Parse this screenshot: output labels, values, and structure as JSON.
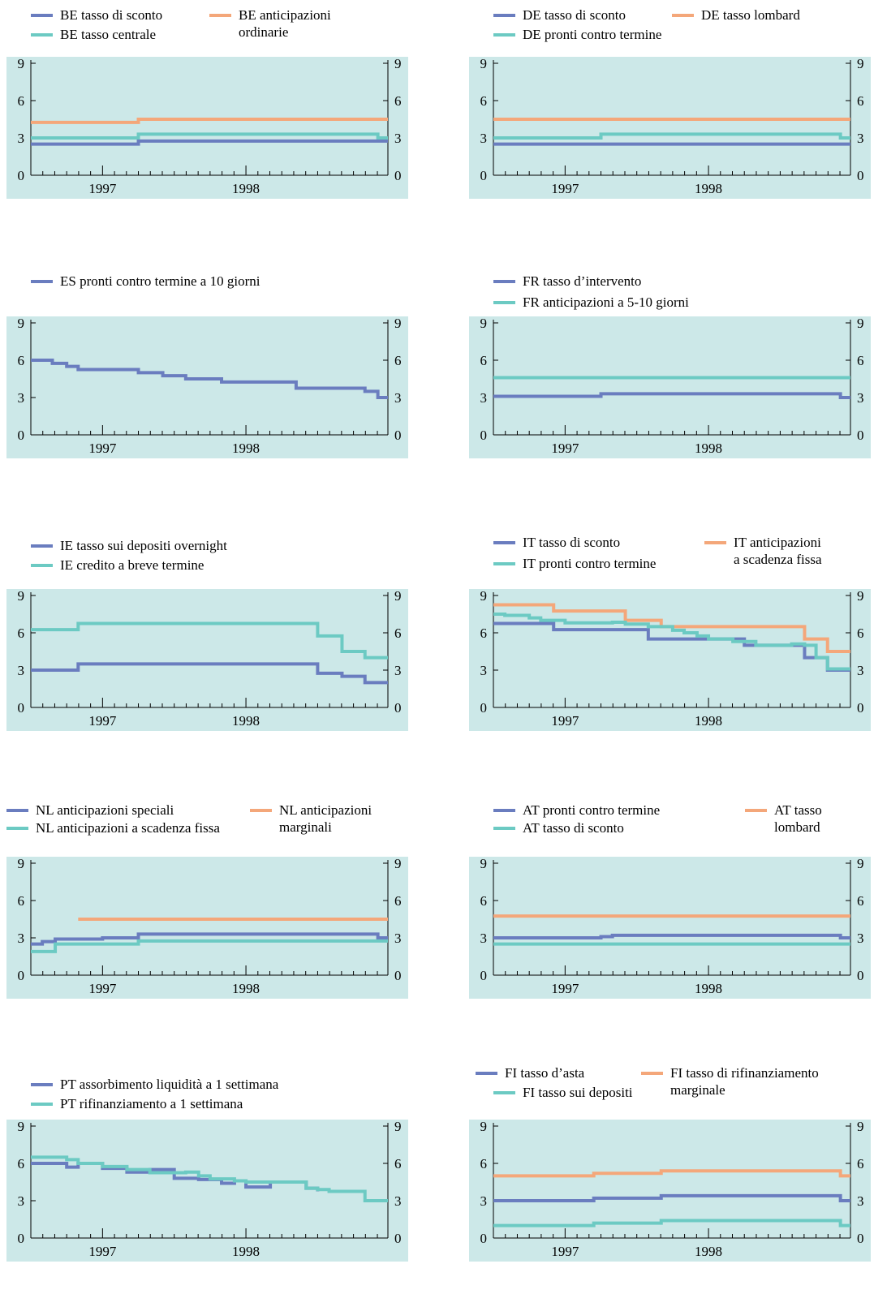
{
  "colors": {
    "blue": "#6a7dbf",
    "orange": "#f4a77a",
    "teal": "#6ccac3",
    "background": "#cce8e8"
  },
  "chart_data": [
    {
      "type": "line",
      "ylim": [
        0,
        9
      ],
      "yticks": [
        0,
        3,
        6,
        9
      ],
      "xlim": [
        1996.5,
        1998.99
      ],
      "xtick_labels": [
        "1997",
        "1998"
      ],
      "series": [
        {
          "name_parts": [
            "BE",
            "tasso di sconto"
          ],
          "color": "blue",
          "x": [
            1996.5,
            1997.25,
            1998.99
          ],
          "values": [
            2.5,
            2.75,
            2.75
          ]
        },
        {
          "name_parts": [
            "BE",
            "anticipazioni\nordinarie"
          ],
          "color": "orange",
          "x": [
            1996.5,
            1997.25,
            1998.99
          ],
          "values": [
            4.25,
            4.5,
            4.5
          ]
        },
        {
          "name_parts": [
            "BE",
            "tasso centrale"
          ],
          "color": "teal",
          "x": [
            1996.5,
            1997.25,
            1998.92,
            1998.99
          ],
          "values": [
            3.0,
            3.3,
            3.0,
            3.0
          ]
        }
      ]
    },
    {
      "type": "line",
      "ylim": [
        0,
        9
      ],
      "yticks": [
        0,
        3,
        6,
        9
      ],
      "xlim": [
        1996.5,
        1998.99
      ],
      "xtick_labels": [
        "1997",
        "1998"
      ],
      "series": [
        {
          "name_parts": [
            "DE",
            "tasso di sconto"
          ],
          "color": "blue",
          "x": [
            1996.5,
            1998.99
          ],
          "values": [
            2.5,
            2.5
          ]
        },
        {
          "name_parts": [
            "DE",
            "tasso lombard"
          ],
          "color": "orange",
          "x": [
            1996.5,
            1998.99
          ],
          "values": [
            4.5,
            4.5
          ]
        },
        {
          "name_parts": [
            "DE",
            "pronti contro termine"
          ],
          "color": "teal",
          "x": [
            1996.5,
            1997.25,
            1998.92,
            1998.99
          ],
          "values": [
            3.0,
            3.3,
            3.0,
            3.0
          ]
        }
      ]
    },
    {
      "type": "line",
      "ylim": [
        0,
        9
      ],
      "yticks": [
        0,
        3,
        6,
        9
      ],
      "xlim": [
        1996.5,
        1998.99
      ],
      "xtick_labels": [
        "1997",
        "1998"
      ],
      "series": [
        {
          "name_parts": [
            "ES",
            "pronti contro termine a 10 giorni"
          ],
          "color": "blue",
          "x": [
            1996.5,
            1996.65,
            1996.75,
            1996.83,
            1997.25,
            1997.42,
            1997.58,
            1997.83,
            1998.25,
            1998.35,
            1998.83,
            1998.92,
            1998.99
          ],
          "values": [
            6.0,
            5.75,
            5.5,
            5.25,
            5.0,
            4.75,
            4.5,
            4.25,
            4.25,
            3.75,
            3.5,
            3.0,
            3.0
          ]
        }
      ]
    },
    {
      "type": "line",
      "ylim": [
        0,
        9
      ],
      "yticks": [
        0,
        3,
        6,
        9
      ],
      "xlim": [
        1996.5,
        1998.99
      ],
      "xtick_labels": [
        "1997",
        "1998"
      ],
      "series": [
        {
          "name_parts": [
            "FR",
            "tasso d’intervento"
          ],
          "color": "blue",
          "x": [
            1996.5,
            1997.25,
            1998.92,
            1998.99
          ],
          "values": [
            3.1,
            3.3,
            3.0,
            3.0
          ]
        },
        {
          "name_parts": [
            "FR",
            "anticipazioni a 5-10 giorni"
          ],
          "color": "teal",
          "x": [
            1996.5,
            1998.99
          ],
          "values": [
            4.6,
            4.6
          ]
        }
      ]
    },
    {
      "type": "line",
      "ylim": [
        0,
        9
      ],
      "yticks": [
        0,
        3,
        6,
        9
      ],
      "xlim": [
        1996.5,
        1998.99
      ],
      "xtick_labels": [
        "1997",
        "1998"
      ],
      "series": [
        {
          "name_parts": [
            "IE",
            "tasso sui depositi overnight"
          ],
          "color": "blue",
          "x": [
            1996.5,
            1996.83,
            1998.25,
            1998.5,
            1998.67,
            1998.83,
            1998.99
          ],
          "values": [
            3.0,
            3.5,
            3.5,
            2.75,
            2.5,
            2.0,
            2.0
          ]
        },
        {
          "name_parts": [
            "IE",
            "credito a breve termine"
          ],
          "color": "teal",
          "x": [
            1996.5,
            1996.83,
            1998.25,
            1998.5,
            1998.67,
            1998.83,
            1998.99
          ],
          "values": [
            6.25,
            6.75,
            6.75,
            5.75,
            4.5,
            4.0,
            4.0
          ]
        }
      ]
    },
    {
      "type": "line",
      "ylim": [
        0,
        9
      ],
      "yticks": [
        0,
        3,
        6,
        9
      ],
      "xlim": [
        1996.5,
        1998.99
      ],
      "xtick_labels": [
        "1997",
        "1998"
      ],
      "series": [
        {
          "name_parts": [
            "IT",
            "tasso di sconto"
          ],
          "color": "blue",
          "x": [
            1996.5,
            1996.92,
            1997.33,
            1997.58,
            1998.25,
            1998.42,
            1998.67,
            1998.83,
            1998.99
          ],
          "values": [
            6.75,
            6.25,
            6.25,
            5.5,
            5.0,
            5.0,
            4.0,
            3.0,
            3.0
          ]
        },
        {
          "name_parts": [
            "IT",
            "anticipazioni\na scadenza fissa"
          ],
          "color": "orange",
          "x": [
            1996.5,
            1996.92,
            1997.42,
            1997.67,
            1998.25,
            1998.67,
            1998.83,
            1998.99
          ],
          "values": [
            8.25,
            7.75,
            7.0,
            6.5,
            6.5,
            5.5,
            4.5,
            4.5
          ]
        },
        {
          "name_parts": [
            "IT",
            "pronti contro termine"
          ],
          "color": "teal",
          "x": [
            1996.5,
            1996.58,
            1996.75,
            1996.83,
            1997.0,
            1997.17,
            1997.33,
            1997.42,
            1997.58,
            1997.75,
            1997.83,
            1997.92,
            1998.0,
            1998.17,
            1998.33,
            1998.5,
            1998.58,
            1998.67,
            1998.75,
            1998.83,
            1998.99
          ],
          "values": [
            7.5,
            7.4,
            7.2,
            7.0,
            6.8,
            6.8,
            6.85,
            6.7,
            6.5,
            6.2,
            6.0,
            5.75,
            5.5,
            5.3,
            5.0,
            5.0,
            5.1,
            5.0,
            4.0,
            3.1,
            3.1
          ]
        }
      ]
    },
    {
      "type": "line",
      "ylim": [
        0,
        9
      ],
      "yticks": [
        0,
        3,
        6,
        9
      ],
      "xlim": [
        1996.5,
        1998.99
      ],
      "xtick_labels": [
        "1997",
        "1998"
      ],
      "series": [
        {
          "name_parts": [
            "NL",
            "anticipazioni speciali"
          ],
          "color": "blue",
          "x": [
            1996.5,
            1996.58,
            1996.67,
            1997.0,
            1997.25,
            1997.5,
            1998.92,
            1998.99
          ],
          "values": [
            2.5,
            2.7,
            2.9,
            3.0,
            3.3,
            3.3,
            3.0,
            3.0
          ]
        },
        {
          "name_parts": [
            "NL",
            "anticipazioni\nmarginali"
          ],
          "color": "orange",
          "x": [
            1996.83,
            1998.99
          ],
          "values": [
            4.5,
            4.5
          ]
        },
        {
          "name_parts": [
            "NL",
            "anticipazioni a scadenza fissa"
          ],
          "color": "teal",
          "x": [
            1996.5,
            1996.67,
            1997.25,
            1998.99
          ],
          "values": [
            1.9,
            2.5,
            2.75,
            2.75
          ]
        }
      ]
    },
    {
      "type": "line",
      "ylim": [
        0,
        9
      ],
      "yticks": [
        0,
        3,
        6,
        9
      ],
      "xlim": [
        1996.5,
        1998.99
      ],
      "xtick_labels": [
        "1997",
        "1998"
      ],
      "series": [
        {
          "name_parts": [
            "AT",
            "pronti contro termine"
          ],
          "color": "blue",
          "x": [
            1996.5,
            1997.25,
            1997.33,
            1998.92,
            1998.99
          ],
          "values": [
            3.0,
            3.1,
            3.2,
            3.0,
            3.0
          ]
        },
        {
          "name_parts": [
            "AT",
            "tasso\nlombard"
          ],
          "color": "orange",
          "x": [
            1996.5,
            1998.99
          ],
          "values": [
            4.75,
            4.75
          ]
        },
        {
          "name_parts": [
            "AT",
            "tasso di sconto"
          ],
          "color": "teal",
          "x": [
            1996.5,
            1998.99
          ],
          "values": [
            2.5,
            2.5
          ]
        }
      ]
    },
    {
      "type": "line",
      "ylim": [
        0,
        9
      ],
      "yticks": [
        0,
        3,
        6,
        9
      ],
      "xlim": [
        1996.5,
        1998.99
      ],
      "xtick_labels": [
        "1997",
        "1998"
      ],
      "series": [
        {
          "name_parts": [
            "PT",
            "assorbimento liquidità a 1 settimana"
          ],
          "color": "blue",
          "x": [
            1996.5,
            1996.75,
            1996.83,
            1997.0,
            1997.17,
            1997.33,
            1997.5,
            1997.67,
            1997.83,
            1997.92,
            1998.0,
            1998.17,
            1998.33,
            1998.42,
            1998.5
          ],
          "values": [
            6.0,
            5.7,
            6.0,
            5.6,
            5.3,
            5.5,
            4.8,
            4.7,
            4.4,
            4.6,
            4.1,
            4.5,
            4.5,
            4.0,
            3.75
          ]
        },
        {
          "name_parts": [
            "PT",
            "rifinanziamento a 1 settimana"
          ],
          "color": "teal",
          "x": [
            1996.5,
            1996.75,
            1996.83,
            1997.0,
            1997.17,
            1997.33,
            1997.58,
            1997.67,
            1997.75,
            1997.92,
            1998.0,
            1998.25,
            1998.42,
            1998.5,
            1998.58,
            1998.83,
            1998.99
          ],
          "values": [
            6.5,
            6.3,
            6.0,
            5.75,
            5.5,
            5.25,
            5.3,
            5.0,
            4.75,
            4.6,
            4.5,
            4.5,
            4.0,
            3.9,
            3.75,
            3.0,
            3.0
          ]
        }
      ]
    },
    {
      "type": "line",
      "ylim": [
        0,
        9
      ],
      "yticks": [
        0,
        3,
        6,
        9
      ],
      "xlim": [
        1996.5,
        1998.99
      ],
      "xtick_labels": [
        "1997",
        "1998"
      ],
      "series": [
        {
          "name_parts": [
            "FI",
            "tasso d’asta"
          ],
          "color": "blue",
          "x": [
            1996.5,
            1997.2,
            1997.67,
            1998.92,
            1998.99
          ],
          "values": [
            3.0,
            3.2,
            3.4,
            3.0,
            3.0
          ]
        },
        {
          "name_parts": [
            "FI",
            "tasso di rifinanziamento\nmarginale"
          ],
          "color": "orange",
          "x": [
            1996.5,
            1997.2,
            1997.67,
            1998.92,
            1998.99
          ],
          "values": [
            5.0,
            5.2,
            5.4,
            5.0,
            5.0
          ]
        },
        {
          "name_parts": [
            "FI",
            "tasso sui depositi"
          ],
          "color": "teal",
          "x": [
            1996.5,
            1997.2,
            1997.67,
            1998.92,
            1998.99
          ],
          "values": [
            1.0,
            1.2,
            1.4,
            1.0,
            1.0
          ]
        }
      ]
    }
  ]
}
